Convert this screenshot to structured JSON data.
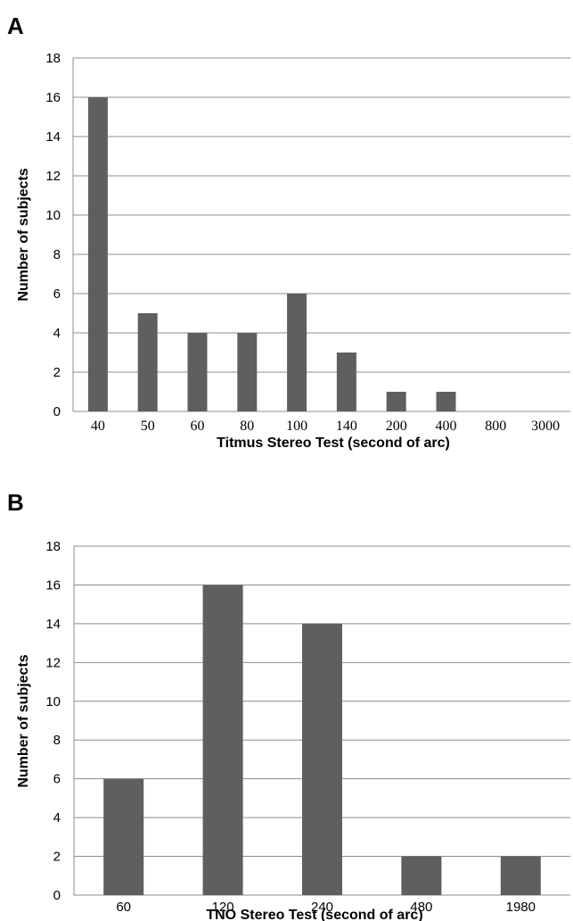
{
  "chart_data": [
    {
      "panel": "A",
      "type": "bar",
      "categories": [
        "40",
        "50",
        "60",
        "80",
        "100",
        "140",
        "200",
        "400",
        "800",
        "3000"
      ],
      "values": [
        16,
        5,
        4,
        4,
        6,
        3,
        1,
        1,
        0,
        0
      ],
      "xlabel": "Titmus Stereo Test (second of arc)",
      "ylabel": "Number of subjects",
      "ylim": [
        0,
        18
      ],
      "yticks": [
        "0",
        "2",
        "4",
        "6",
        "8",
        "10",
        "12",
        "14",
        "16",
        "18"
      ],
      "grid": true,
      "bar_color": "#5f5f5f"
    },
    {
      "panel": "B",
      "type": "bar",
      "categories": [
        "60",
        "120",
        "240",
        "480",
        "1980"
      ],
      "values": [
        6,
        16,
        14,
        2,
        2
      ],
      "xlabel": "TNO Stereo Test (second of arc)",
      "ylabel": "Number of subjects",
      "ylim": [
        0,
        18
      ],
      "yticks": [
        "0",
        "2",
        "4",
        "6",
        "8",
        "10",
        "12",
        "14",
        "16",
        "18"
      ],
      "grid": true,
      "bar_color": "#5f5f5f"
    }
  ]
}
